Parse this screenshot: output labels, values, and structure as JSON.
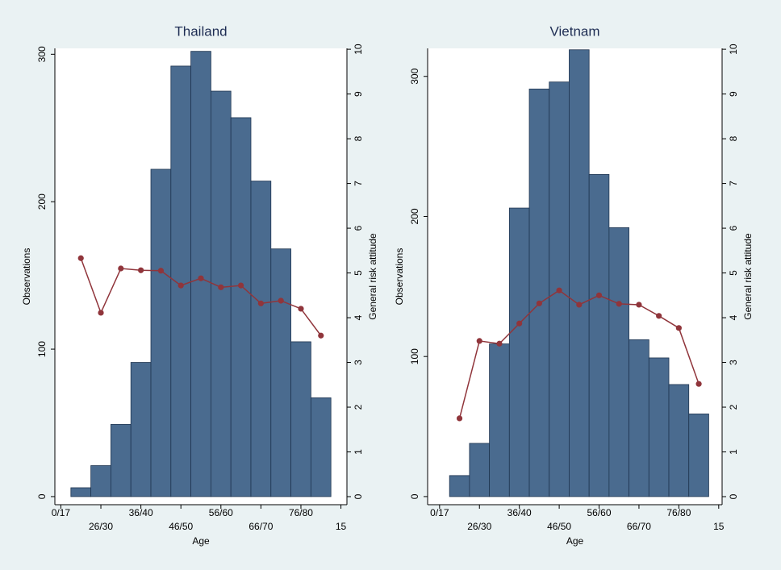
{
  "chart_data": [
    {
      "type": "bar",
      "title": "Thailand",
      "x_label": "Age",
      "y_label": "Observations",
      "y2_label": "General risk attitude",
      "x": [
        1,
        2,
        3,
        4,
        5,
        6,
        7,
        8,
        9,
        10,
        11,
        12,
        13
      ],
      "xlim": [
        -0.3,
        14.3
      ],
      "xticks": [
        {
          "value": 0,
          "label": "0/17"
        },
        {
          "value": 2,
          "label": "26/30"
        },
        {
          "value": 4,
          "label": "36/40"
        },
        {
          "value": 6,
          "label": "46/50"
        },
        {
          "value": 8,
          "label": "56/60"
        },
        {
          "value": 10,
          "label": "66/70"
        },
        {
          "value": 12,
          "label": "76/80"
        },
        {
          "value": 14,
          "label": "15"
        }
      ],
      "ylim": [
        -5.5,
        304
      ],
      "yticks": [
        0,
        100,
        200,
        300
      ],
      "y2lim": [
        -0.18,
        10.02
      ],
      "y2ticks": [
        0,
        1,
        2,
        3,
        4,
        5,
        6,
        7,
        8,
        9,
        10
      ],
      "series": [
        {
          "type": "bar",
          "color": "#4a6b8f",
          "values": [
            6,
            21,
            49,
            91,
            222,
            292,
            302,
            275,
            257,
            214,
            168,
            105,
            67
          ]
        },
        {
          "type": "line",
          "axis": "y2",
          "color": "#90353b",
          "values": [
            5.33,
            4.11,
            5.1,
            5.06,
            5.05,
            4.72,
            4.88,
            4.68,
            4.72,
            4.32,
            4.38,
            4.2,
            3.6
          ]
        }
      ]
    },
    {
      "type": "bar",
      "title": "Vietnam",
      "x_label": "Age",
      "y_label": "Observations",
      "y2_label": "General risk attitude",
      "x": [
        1,
        2,
        3,
        4,
        5,
        6,
        7,
        8,
        9,
        10,
        11,
        12,
        13
      ],
      "xlim": [
        -0.6,
        14.17
      ],
      "xticks": [
        {
          "value": 0,
          "label": "0/17"
        },
        {
          "value": 2,
          "label": "26/30"
        },
        {
          "value": 4,
          "label": "36/40"
        },
        {
          "value": 6,
          "label": "46/50"
        },
        {
          "value": 8,
          "label": "56/60"
        },
        {
          "value": 10,
          "label": "66/70"
        },
        {
          "value": 12,
          "label": "76/80"
        },
        {
          "value": 14,
          "label": "15"
        }
      ],
      "ylim": [
        -5.8,
        320
      ],
      "yticks": [
        0,
        100,
        200,
        300
      ],
      "y2lim": [
        -0.18,
        10.02
      ],
      "y2ticks": [
        0,
        1,
        2,
        3,
        4,
        5,
        6,
        7,
        8,
        9,
        10
      ],
      "series": [
        {
          "type": "bar",
          "color": "#4a6b8f",
          "values": [
            15,
            38,
            109,
            206,
            291,
            296,
            319,
            230,
            192,
            112,
            99,
            80,
            59
          ]
        },
        {
          "type": "line",
          "axis": "y2",
          "color": "#90353b",
          "values": [
            1.75,
            3.48,
            3.42,
            3.87,
            4.32,
            4.61,
            4.29,
            4.5,
            4.31,
            4.29,
            4.04,
            3.77,
            2.52
          ]
        }
      ]
    }
  ]
}
